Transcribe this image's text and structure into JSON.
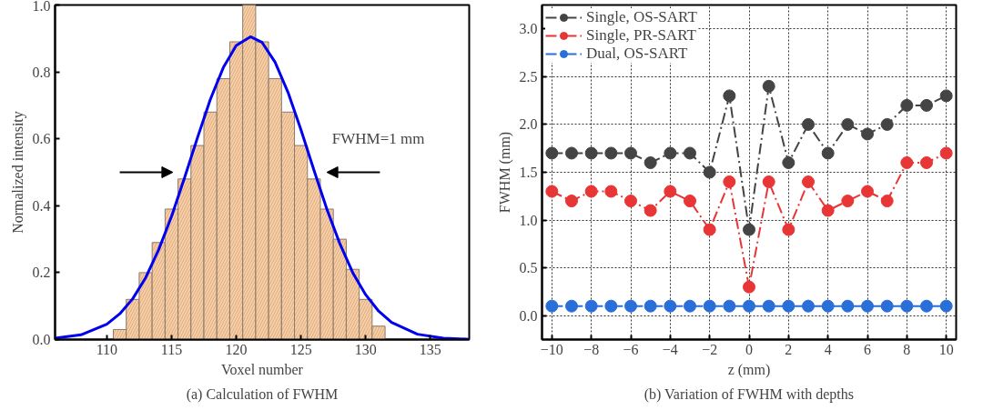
{
  "chart_data": [
    {
      "type": "histogram",
      "title": "(a) Calculation of FWHM",
      "xlabel": "Voxel number",
      "ylabel": "Normalized intensity",
      "xlim": [
        106,
        138
      ],
      "xticks": [
        110,
        115,
        120,
        125,
        130,
        135
      ],
      "ylim": [
        0,
        1.0
      ],
      "yticks": [
        {
          "value": 0,
          "label": "0.0"
        },
        {
          "value": 0.2,
          "label": "0.2"
        },
        {
          "value": 0.4,
          "label": "0.4"
        },
        {
          "value": 0.6,
          "label": "0.6"
        },
        {
          "value": 0.8,
          "label": "0.8"
        },
        {
          "value": 1.0,
          "label": "1.0"
        }
      ],
      "grid": false,
      "legend": false,
      "annotations": [
        "FWHM=1 mm"
      ],
      "series": [
        {
          "type": "histogram",
          "color": "#f8cfa6",
          "bins": [
            110.5,
            111.5,
            112.5,
            113.5,
            114.5,
            115.5,
            116.5,
            117.5,
            118.5,
            119.5,
            120.5,
            121.5,
            122.5,
            123.5,
            124.5,
            125.5,
            126.5,
            127.5,
            128.5,
            129.5,
            130.5,
            131.5
          ],
          "values": [
            0.03,
            0.12,
            0.2,
            0.29,
            0.39,
            0.48,
            0.58,
            0.68,
            0.78,
            0.89,
            1.0,
            0.89,
            0.78,
            0.68,
            0.58,
            0.48,
            0.39,
            0.3,
            0.21,
            0.12,
            0.04
          ]
        },
        {
          "type": "line",
          "color": "#0000ee",
          "x": [
            106,
            108,
            110,
            111,
            112,
            113,
            114,
            115,
            116,
            117,
            118,
            119,
            120,
            121.1,
            122,
            123,
            124,
            125,
            126,
            127,
            128,
            129,
            130,
            131,
            132,
            134,
            136,
            138
          ],
          "values": [
            0.004,
            0.014,
            0.046,
            0.077,
            0.122,
            0.185,
            0.268,
            0.368,
            0.483,
            0.603,
            0.718,
            0.813,
            0.879,
            0.905,
            0.888,
            0.829,
            0.739,
            0.627,
            0.507,
            0.39,
            0.287,
            0.2,
            0.134,
            0.085,
            0.051,
            0.016,
            0.004,
            0.001
          ]
        }
      ]
    },
    {
      "type": "line",
      "title": "(b) Variation of FWHM with depths",
      "xlabel": "z (mm)",
      "ylabel": "FWHM (mm)",
      "x": [
        -10,
        -9,
        -8,
        -7,
        -6,
        -5,
        -4,
        -3,
        -2,
        -1,
        0,
        1,
        2,
        3,
        4,
        5,
        6,
        7,
        8,
        9,
        10
      ],
      "xlim": [
        -10.5,
        10.5
      ],
      "xticks": [
        -10,
        -8,
        -6,
        -4,
        -2,
        0,
        2,
        4,
        6,
        8,
        10
      ],
      "ylim": [
        -0.25,
        3.25
      ],
      "yticks": [
        {
          "value": 0,
          "label": "0.0"
        },
        {
          "value": 0.5,
          "label": "0.5"
        },
        {
          "value": 1.0,
          "label": "1.0"
        },
        {
          "value": 1.5,
          "label": "1.5"
        },
        {
          "value": 2.0,
          "label": "2.0"
        },
        {
          "value": 2.5,
          "label": "2.5"
        },
        {
          "value": 3.0,
          "label": "3.0"
        }
      ],
      "grid": true,
      "legend": "top left",
      "marker": "circle",
      "line_style": "dashed",
      "series": [
        {
          "name": "Single, OS-SART",
          "color": "#444444",
          "values": [
            1.7,
            1.7,
            1.7,
            1.7,
            1.7,
            1.6,
            1.7,
            1.7,
            1.5,
            2.3,
            0.9,
            2.4,
            1.6,
            2.0,
            1.7,
            2.0,
            1.9,
            2.0,
            2.2,
            2.2,
            2.3
          ]
        },
        {
          "name": "Single, PR-SART",
          "color": "#e83535",
          "values": [
            1.3,
            1.2,
            1.3,
            1.3,
            1.2,
            1.1,
            1.3,
            1.2,
            0.9,
            1.4,
            0.3,
            1.4,
            0.9,
            1.4,
            1.1,
            1.2,
            1.3,
            1.2,
            1.6,
            1.6,
            1.7
          ]
        },
        {
          "name": "Dual, OS-SART",
          "color": "#2a6fd8",
          "values": [
            0.1,
            0.1,
            0.1,
            0.1,
            0.1,
            0.1,
            0.1,
            0.1,
            0.1,
            0.1,
            0.1,
            0.1,
            0.1,
            0.1,
            0.1,
            0.1,
            0.1,
            0.1,
            0.1,
            0.1,
            0.1
          ]
        }
      ]
    }
  ]
}
